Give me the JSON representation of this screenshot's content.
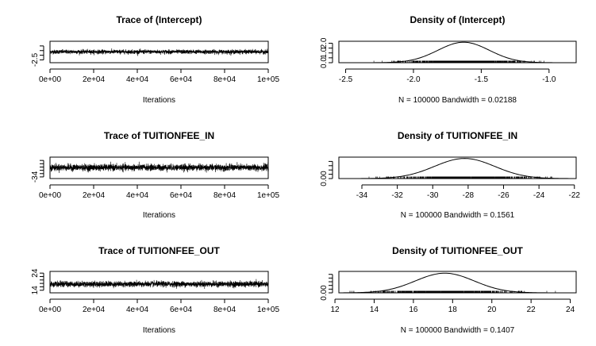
{
  "figure": {
    "background": "#ffffff",
    "line_color": "#000000"
  },
  "chart_data": [
    {
      "type": "line",
      "subtype": "mcmc-trace",
      "title": "Trace of (Intercept)",
      "xlabel": "Iterations",
      "ylabel": "",
      "x_range": [
        1,
        100000
      ],
      "xlim": [
        0,
        100000
      ],
      "x_ticks": [
        0,
        20000,
        40000,
        60000,
        80000,
        100000
      ],
      "x_tick_labels": [
        "0e+00",
        "2e+04",
        "4e+04",
        "6e+04",
        "8e+04",
        "1e+05"
      ],
      "center": -1.63,
      "spread": 0.2,
      "ylim": [
        -2.8,
        -0.5
      ],
      "y_ticks": [
        -2.5
      ],
      "y_tick_labels": [
        "-2.5"
      ],
      "y_minor_ticks": [
        -2.5,
        -2.0,
        -1.5,
        -1.0
      ]
    },
    {
      "type": "line",
      "subtype": "density",
      "title": "Density of (Intercept)",
      "xlabel": "N = 100000   Bandwidth = 0.02188",
      "ylabel": "",
      "mean": -1.63,
      "sd": 0.19,
      "xlim": [
        -2.55,
        -0.8
      ],
      "x_ticks": [
        -2.5,
        -2.0,
        -1.5,
        -1.0
      ],
      "x_tick_labels": [
        "-2.5",
        "-2.0",
        "-1.5",
        "-1.0"
      ],
      "ylim": [
        0,
        2.2
      ],
      "y_ticks": [
        0.0,
        1.0,
        2.0
      ],
      "y_tick_labels": [
        "0.0",
        "1.0",
        "2.0"
      ],
      "y_minor_ticks": [
        0.0,
        0.5,
        1.0,
        1.5,
        2.0
      ],
      "rug": true
    },
    {
      "type": "line",
      "subtype": "mcmc-trace",
      "title": "Trace of TUITIONFEE_IN",
      "xlabel": "Iterations",
      "ylabel": "",
      "x_range": [
        1,
        100000
      ],
      "xlim": [
        0,
        100000
      ],
      "x_ticks": [
        0,
        20000,
        40000,
        60000,
        80000,
        100000
      ],
      "x_tick_labels": [
        "0e+00",
        "2e+04",
        "4e+04",
        "6e+04",
        "8e+04",
        "1e+05"
      ],
      "center": -28.3,
      "spread": 1.8,
      "ylim": [
        -35,
        -22
      ],
      "y_ticks": [
        -34
      ],
      "y_tick_labels": [
        "-34"
      ],
      "y_minor_ticks": [
        -34,
        -32,
        -30,
        -28,
        -26,
        -24
      ]
    },
    {
      "type": "line",
      "subtype": "density",
      "title": "Density of TUITIONFEE_IN",
      "xlabel": "N = 100000   Bandwidth = 0.1561",
      "ylabel": "",
      "mean": -28.2,
      "sd": 1.7,
      "xlim": [
        -35.3,
        -21.9
      ],
      "x_ticks": [
        -34,
        -32,
        -30,
        -28,
        -26,
        -24,
        -22
      ],
      "x_tick_labels": [
        "-34",
        "-32",
        "-30",
        "-28",
        "-26",
        "-24",
        "-22"
      ],
      "ylim": [
        0,
        0.25
      ],
      "y_ticks": [
        0.0
      ],
      "y_tick_labels": [
        "0.00"
      ],
      "y_minor_ticks": [
        0.0,
        0.05,
        0.1,
        0.15,
        0.2
      ],
      "rug": true
    },
    {
      "type": "line",
      "subtype": "mcmc-trace",
      "title": "Trace of TUITIONFEE_OUT",
      "xlabel": "Iterations",
      "ylabel": "",
      "x_range": [
        1,
        100000
      ],
      "xlim": [
        0,
        100000
      ],
      "x_ticks": [
        0,
        20000,
        40000,
        60000,
        80000,
        100000
      ],
      "x_tick_labels": [
        "0e+00",
        "2e+04",
        "4e+04",
        "6e+04",
        "8e+04",
        "1e+05"
      ],
      "center": 17.6,
      "spread": 1.5,
      "ylim": [
        12.5,
        25
      ],
      "y_ticks": [
        14,
        24
      ],
      "y_tick_labels": [
        "14",
        "24"
      ],
      "y_minor_ticks": [
        14,
        16,
        18,
        20,
        22,
        24
      ]
    },
    {
      "type": "line",
      "subtype": "density",
      "title": "Density of TUITIONFEE_OUT",
      "xlabel": "N = 100000   Bandwidth = 0.1407",
      "ylabel": "",
      "mean": 17.6,
      "sd": 1.5,
      "xlim": [
        12.2,
        24.3
      ],
      "x_ticks": [
        12,
        14,
        16,
        18,
        20,
        22,
        24
      ],
      "x_tick_labels": [
        "12",
        "14",
        "16",
        "18",
        "20",
        "22",
        "24"
      ],
      "ylim": [
        0,
        0.29
      ],
      "y_ticks": [
        0.0
      ],
      "y_tick_labels": [
        "0.00"
      ],
      "y_minor_ticks": [
        0.0,
        0.05,
        0.1,
        0.15,
        0.2,
        0.25
      ],
      "rug": true
    }
  ]
}
